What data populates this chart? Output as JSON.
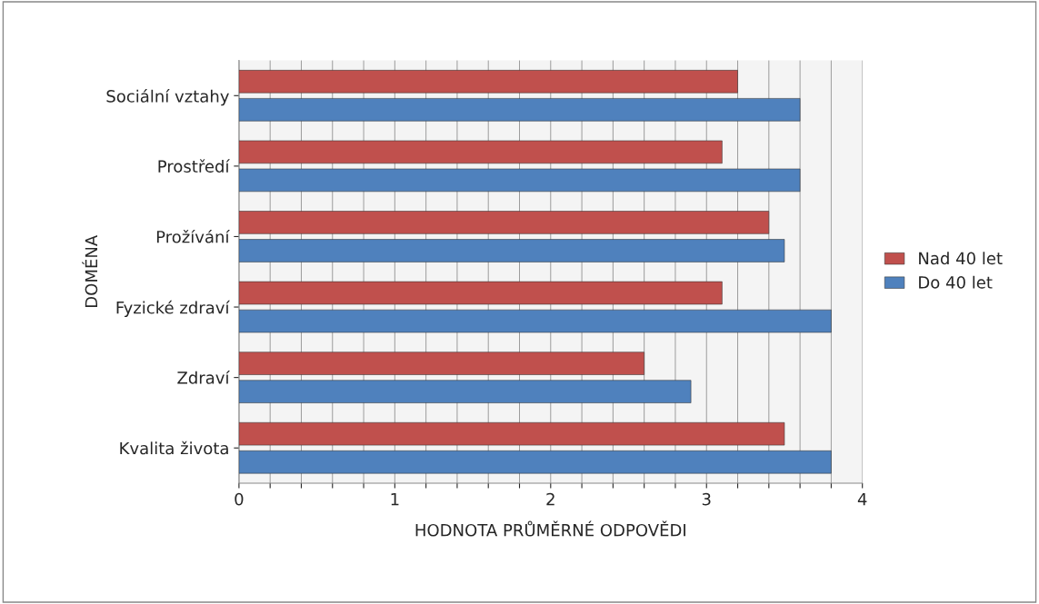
{
  "chart_data": {
    "type": "bar",
    "orientation": "horizontal",
    "xlabel": "HODNOTA PRŮMĚRNÉ ODPOVĚDI",
    "ylabel": "DOMÉNA",
    "categories": [
      "Sociální vztahy",
      "Prostředí",
      "Prožívání",
      "Fyzické zdraví",
      "Zdraví",
      "Kvalita života"
    ],
    "series": [
      {
        "name": "Nad 40 let",
        "color": "#c0504d",
        "values": [
          3.2,
          3.1,
          3.4,
          3.1,
          2.6,
          3.5
        ]
      },
      {
        "name": "Do 40 let",
        "color": "#4f81bd",
        "values": [
          3.6,
          3.6,
          3.5,
          3.8,
          2.9,
          3.8
        ]
      }
    ],
    "xlim": [
      0,
      4
    ],
    "xticks": [
      0,
      {
        "value": 0.2,
        "label": null
      },
      {
        "value": 0.4,
        "label": null
      },
      {
        "value": 0.6,
        "label": null
      },
      {
        "value": 0.8,
        "label": null
      },
      1,
      {
        "value": 1.2,
        "label": null
      },
      {
        "value": 1.4,
        "label": null
      },
      {
        "value": 1.6,
        "label": null
      },
      {
        "value": 1.8,
        "label": null
      },
      2,
      {
        "value": 2.2,
        "label": null
      },
      {
        "value": 2.4,
        "label": null
      },
      {
        "value": 2.6,
        "label": null
      },
      {
        "value": 2.8,
        "label": null
      },
      3,
      {
        "value": 3.2,
        "label": null
      },
      {
        "value": 3.4,
        "label": null
      },
      {
        "value": 3.6,
        "label": null
      },
      {
        "value": 3.8,
        "label": null
      },
      4
    ],
    "grid": "x",
    "legend": "right"
  }
}
